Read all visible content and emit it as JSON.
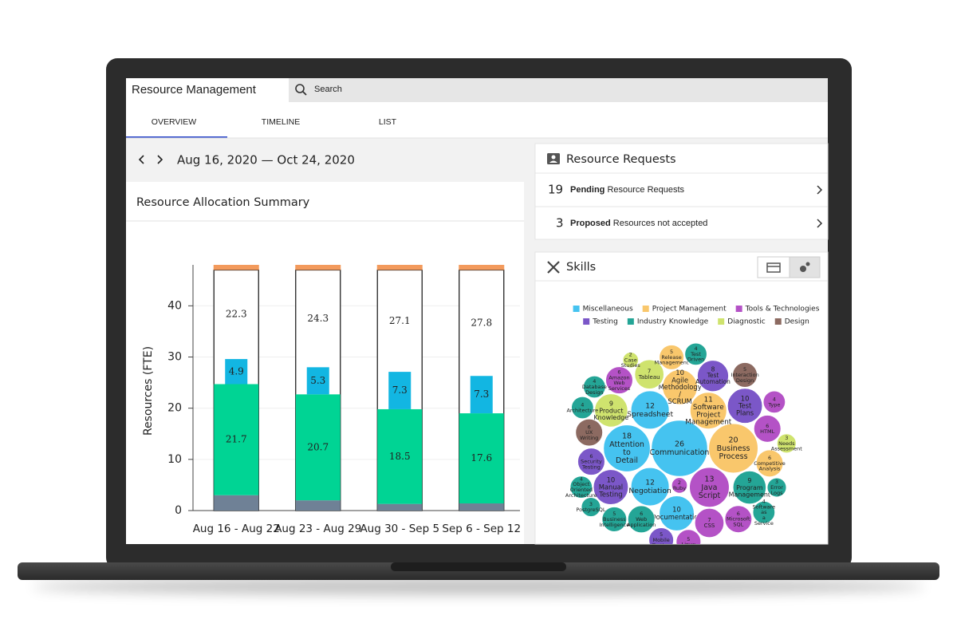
{
  "header": {
    "title": "Resource Management",
    "search": "Search"
  },
  "tabs": [
    "OVERVIEW",
    "TIMELINE",
    "LIST"
  ],
  "date_range": "Aug 16, 2020 — Oct 24, 2020",
  "requests": {
    "title": "Resource Requests",
    "rows": [
      {
        "count": "19",
        "bold": "Pending",
        "text": "Resource Requests"
      },
      {
        "count": "3",
        "bold": "Proposed",
        "text": "Resources not accepted"
      }
    ]
  },
  "chart_data": [
    {
      "type": "bar",
      "stacked": true,
      "title": "Resource Allocation Summary",
      "y_label": "Resources (FTE)",
      "categories": [
        "Aug 16 - Aug 22",
        "Aug 23 - Aug 29",
        "Aug 30 - Sep 5",
        "Sep 6 - Sep 12"
      ],
      "series": [
        {
          "color": "#6f8196",
          "values": [
            3,
            2,
            1.3,
            1.4
          ]
        },
        {
          "color": "#00d494",
          "values": [
            21.7,
            20.7,
            18.5,
            17.6
          ],
          "labels": true
        },
        {
          "color": "#12b6e2",
          "values": [
            4.9,
            5.3,
            7.3,
            7.3
          ],
          "labels": true
        }
      ],
      "capacity": {
        "color": "#ffffff",
        "values": [
          47,
          47,
          47,
          47
        ]
      },
      "cap": {
        "color": "#f39a5c",
        "values": [
          1,
          1,
          1,
          1
        ]
      },
      "available": [
        22.3,
        24.3,
        27.1,
        27.8
      ],
      "ylim": [
        0,
        48
      ],
      "yticks": [
        0,
        10,
        20,
        30,
        40
      ],
      "grid": true
    },
    {
      "type": "packed-bubble",
      "title": "Skills",
      "legend": [
        {
          "name": "Miscellaneous",
          "color": "#45c3f0"
        },
        {
          "name": "Project Management",
          "color": "#f9c76c"
        },
        {
          "name": "Tools & Technologies",
          "color": "#b452c6"
        },
        {
          "name": "Testing",
          "color": "#7b57c8"
        },
        {
          "name": "Industry Knowledge",
          "color": "#24a596"
        },
        {
          "name": "Diagnostic",
          "color": "#cfe36e"
        },
        {
          "name": "Design",
          "color": "#8c6a61"
        }
      ],
      "bubbles": [
        {
          "label": "Communication",
          "value": 26,
          "category": "Miscellaneous"
        },
        {
          "label": "Business Process",
          "value": 20,
          "category": "Project Management"
        },
        {
          "label": "Attention to Detail",
          "value": 18,
          "category": "Miscellaneous"
        },
        {
          "label": "Java Script",
          "value": 13,
          "category": "Tools & Technologies"
        },
        {
          "label": "Negotiation",
          "value": 12,
          "category": "Miscellaneous"
        },
        {
          "label": "Spreadsheet",
          "value": 12,
          "category": "Miscellaneous"
        },
        {
          "label": "Software Project Management",
          "value": 11,
          "category": "Project Management"
        },
        {
          "label": "Agile Methodology / SCRUM",
          "value": 10,
          "category": "Project Management"
        },
        {
          "label": "Documentation",
          "value": 10,
          "category": "Miscellaneous"
        },
        {
          "label": "Test Plans",
          "value": 10,
          "category": "Testing"
        },
        {
          "label": "Manual Testing",
          "value": 10,
          "category": "Testing"
        },
        {
          "label": "Product Knowledge",
          "value": 9,
          "category": "Diagnostic"
        },
        {
          "label": "Program Management",
          "value": 9,
          "category": "Industry Knowledge"
        },
        {
          "label": "Test Automation",
          "value": 8,
          "category": "Testing"
        },
        {
          "label": "Tableau",
          "value": 7,
          "category": "Diagnostic"
        },
        {
          "label": "CSS",
          "value": 7,
          "category": "Tools & Technologies"
        },
        {
          "label": "Web Application",
          "value": 6,
          "category": "Industry Knowledge"
        },
        {
          "label": "Security Testing",
          "value": 6,
          "category": "Testing"
        },
        {
          "label": "HTML",
          "value": 6,
          "category": "Tools & Technologies"
        },
        {
          "label": "Competitive Analysis",
          "value": 6,
          "category": "Project Management"
        },
        {
          "label": "UX Writing",
          "value": 6,
          "category": "Design"
        },
        {
          "label": "Amazon Web Services",
          "value": 6,
          "category": "Tools & Technologies"
        },
        {
          "label": "Microsoft SQL",
          "value": 6,
          "category": "Tools & Technologies"
        },
        {
          "label": "Release Management",
          "value": 5,
          "category": "Project Management"
        },
        {
          "label": "Mobile Testing",
          "value": 5,
          "category": "Testing"
        },
        {
          "label": "Linux",
          "value": 5,
          "category": "Tools & Technologies"
        },
        {
          "label": "Business Intelligence",
          "value": 5,
          "category": "Industry Knowledge"
        },
        {
          "label": "Interaction Design",
          "value": 5,
          "category": "Design"
        },
        {
          "label": "Test Driven",
          "value": 4,
          "category": "Industry Knowledge"
        },
        {
          "label": "Architecture",
          "value": 4,
          "category": "Industry Knowledge"
        },
        {
          "label": "Object Oriented Architecture",
          "value": 4,
          "category": "Industry Knowledge"
        },
        {
          "label": "Type",
          "value": 4,
          "category": "Tools & Technologies"
        },
        {
          "label": "Database Design",
          "value": 4,
          "category": "Industry Knowledge"
        },
        {
          "label": "Software as a Service",
          "value": 4,
          "category": "Industry Knowledge"
        },
        {
          "label": "Error Logs",
          "value": 3,
          "category": "Industry Knowledge"
        },
        {
          "label": "Needs Assessment",
          "value": 3,
          "category": "Diagnostic"
        },
        {
          "label": "PostgreSQL",
          "value": 3,
          "category": "Industry Knowledge"
        },
        {
          "label": "Ruby",
          "value": 2,
          "category": "Tools & Technologies"
        },
        {
          "label": "Case Studies",
          "value": 2,
          "category": "Diagnostic"
        }
      ]
    }
  ]
}
